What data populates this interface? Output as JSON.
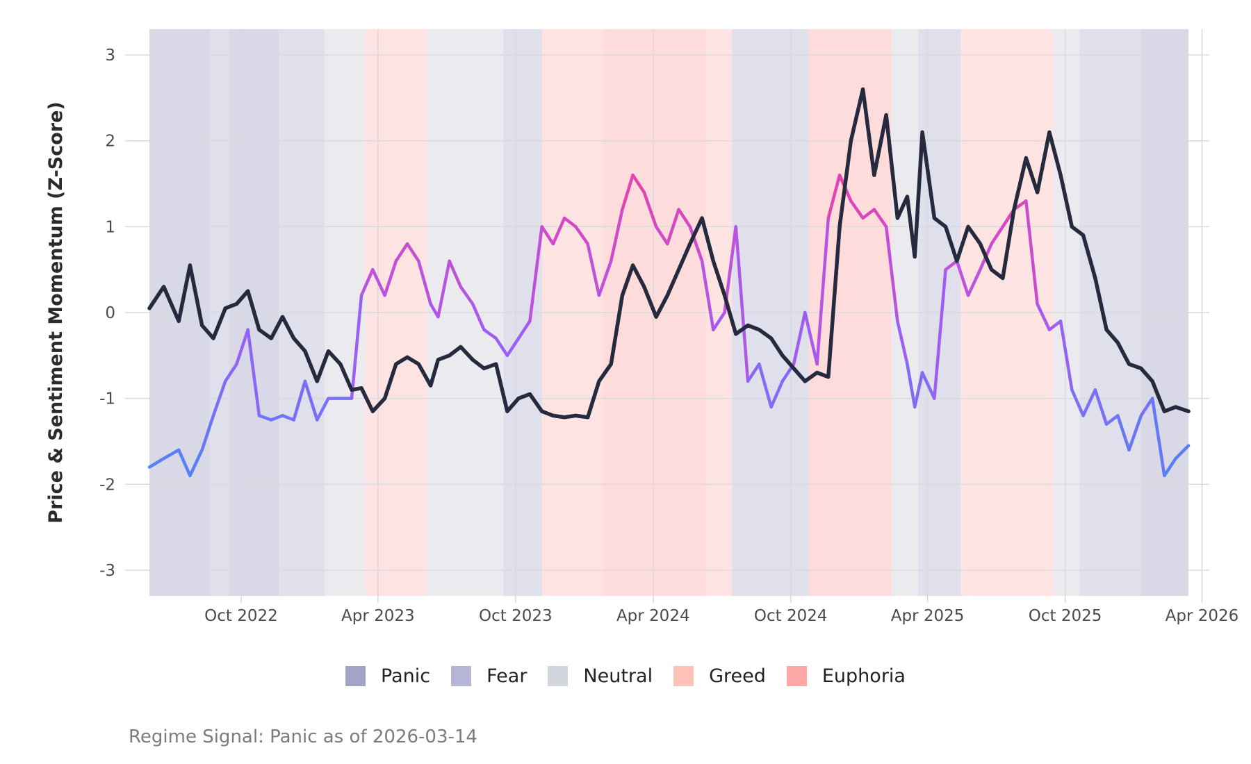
{
  "caption": "Regime Signal: Panic as of 2026-03-14",
  "colors": {
    "panel_bg": "#ebebef",
    "price_line": "#262a3e",
    "sentiment_low": "#4a86f7",
    "sentiment_mid": "#a35cf2",
    "sentiment_high": "#f23ea4",
    "grid": "#d9d9e0"
  },
  "chart_data": {
    "type": "line",
    "title": "",
    "xlabel": "",
    "ylabel": "Price & Sentiment Momentum (Z-Score)",
    "xlim": [
      "2022-06-01",
      "2026-03-14"
    ],
    "ylim": [
      -3.3,
      3.3
    ],
    "grid": true,
    "legend_position": "bottom",
    "x_ticks": [
      {
        "date": "2022-10-01",
        "label": "Oct 2022"
      },
      {
        "date": "2023-04-01",
        "label": "Apr 2023"
      },
      {
        "date": "2023-10-01",
        "label": "Oct 2023"
      },
      {
        "date": "2024-04-01",
        "label": "Apr 2024"
      },
      {
        "date": "2024-10-01",
        "label": "Oct 2024"
      },
      {
        "date": "2025-04-01",
        "label": "Apr 2025"
      },
      {
        "date": "2025-10-01",
        "label": "Oct 2025"
      },
      {
        "date": "2026-04-01",
        "label": "Apr 2026"
      }
    ],
    "y_ticks": [
      {
        "value": 3,
        "label": "3"
      },
      {
        "value": 2,
        "label": "2"
      },
      {
        "value": 1,
        "label": "1"
      },
      {
        "value": 0,
        "label": "0"
      },
      {
        "value": -1,
        "label": "-1"
      },
      {
        "value": -2,
        "label": "-2"
      },
      {
        "value": -3,
        "label": "-3"
      }
    ],
    "regime_legend": [
      {
        "name": "Panic",
        "color": "#a3a3c8"
      },
      {
        "name": "Fear",
        "color": "#b5b5d6"
      },
      {
        "name": "Neutral",
        "color": "#d3d6dc"
      },
      {
        "name": "Greed",
        "color": "#ffc2b8"
      },
      {
        "name": "Euphoria",
        "color": "#ffa8a8"
      }
    ],
    "regime_band_colors": {
      "Panic": "#d8d8e6",
      "Fear": "#e0e0ec",
      "Neutral": "#ebebef",
      "Greed": "#fde4e2",
      "Euphoria": "#ffdcdc"
    },
    "regimes": [
      {
        "start": "2022-06-01",
        "end": "2022-08-20",
        "regime": "Panic"
      },
      {
        "start": "2022-08-20",
        "end": "2022-09-15",
        "regime": "Fear"
      },
      {
        "start": "2022-09-15",
        "end": "2022-11-20",
        "regime": "Panic"
      },
      {
        "start": "2022-11-20",
        "end": "2023-01-20",
        "regime": "Fear"
      },
      {
        "start": "2023-01-20",
        "end": "2023-03-15",
        "regime": "Neutral"
      },
      {
        "start": "2023-03-15",
        "end": "2023-06-05",
        "regime": "Greed"
      },
      {
        "start": "2023-06-05",
        "end": "2023-09-15",
        "regime": "Neutral"
      },
      {
        "start": "2023-09-15",
        "end": "2023-11-05",
        "regime": "Fear"
      },
      {
        "start": "2023-11-05",
        "end": "2024-01-25",
        "regime": "Greed"
      },
      {
        "start": "2024-01-25",
        "end": "2024-06-10",
        "regime": "Euphoria"
      },
      {
        "start": "2024-06-10",
        "end": "2024-07-15",
        "regime": "Greed"
      },
      {
        "start": "2024-07-15",
        "end": "2024-10-25",
        "regime": "Fear"
      },
      {
        "start": "2024-10-25",
        "end": "2025-02-12",
        "regime": "Euphoria"
      },
      {
        "start": "2025-02-12",
        "end": "2025-03-20",
        "regime": "Neutral"
      },
      {
        "start": "2025-03-20",
        "end": "2025-05-15",
        "regime": "Fear"
      },
      {
        "start": "2025-05-15",
        "end": "2025-09-15",
        "regime": "Greed"
      },
      {
        "start": "2025-09-15",
        "end": "2025-10-20",
        "regime": "Neutral"
      },
      {
        "start": "2025-10-20",
        "end": "2026-01-10",
        "regime": "Fear"
      },
      {
        "start": "2026-01-10",
        "end": "2026-03-14",
        "regime": "Panic"
      }
    ],
    "series": [
      {
        "role": "price",
        "x": [
          "2022-06-01",
          "2022-06-20",
          "2022-07-10",
          "2022-07-25",
          "2022-08-10",
          "2022-08-25",
          "2022-09-10",
          "2022-09-25",
          "2022-10-10",
          "2022-10-25",
          "2022-11-10",
          "2022-11-25",
          "2022-12-10",
          "2022-12-25",
          "2023-01-10",
          "2023-01-25",
          "2023-02-10",
          "2023-02-25",
          "2023-03-10",
          "2023-03-25",
          "2023-04-10",
          "2023-04-25",
          "2023-05-10",
          "2023-05-25",
          "2023-06-10",
          "2023-06-20",
          "2023-07-05",
          "2023-07-20",
          "2023-08-05",
          "2023-08-20",
          "2023-09-05",
          "2023-09-20",
          "2023-10-05",
          "2023-10-20",
          "2023-11-05",
          "2023-11-20",
          "2023-12-05",
          "2023-12-20",
          "2024-01-05",
          "2024-01-20",
          "2024-02-05",
          "2024-02-20",
          "2024-03-05",
          "2024-03-20",
          "2024-04-05",
          "2024-04-20",
          "2024-05-05",
          "2024-05-20",
          "2024-06-05",
          "2024-06-20",
          "2024-07-05",
          "2024-07-20",
          "2024-08-05",
          "2024-08-20",
          "2024-09-05",
          "2024-09-20",
          "2024-10-05",
          "2024-10-20",
          "2024-11-05",
          "2024-11-20",
          "2024-12-05",
          "2024-12-20",
          "2025-01-05",
          "2025-01-20",
          "2025-02-05",
          "2025-02-20",
          "2025-03-05",
          "2025-03-15",
          "2025-03-25",
          "2025-04-10",
          "2025-04-25",
          "2025-05-10",
          "2025-05-25",
          "2025-06-10",
          "2025-06-25",
          "2025-07-10",
          "2025-07-25",
          "2025-08-10",
          "2025-08-25",
          "2025-09-10",
          "2025-09-25",
          "2025-10-10",
          "2025-10-25",
          "2025-11-10",
          "2025-11-25",
          "2025-12-10",
          "2025-12-25",
          "2026-01-10",
          "2026-01-25",
          "2026-02-10",
          "2026-02-25",
          "2026-03-14"
        ],
        "y": [
          0.05,
          0.3,
          -0.1,
          0.55,
          -0.15,
          -0.3,
          0.05,
          0.1,
          0.25,
          -0.2,
          -0.3,
          -0.05,
          -0.3,
          -0.45,
          -0.8,
          -0.45,
          -0.6,
          -0.9,
          -0.88,
          -1.15,
          -1.0,
          -0.6,
          -0.52,
          -0.6,
          -0.85,
          -0.55,
          -0.5,
          -0.4,
          -0.55,
          -0.65,
          -0.6,
          -1.15,
          -1.0,
          -0.95,
          -1.15,
          -1.2,
          -1.22,
          -1.2,
          -1.22,
          -0.8,
          -0.6,
          0.2,
          0.55,
          0.3,
          -0.05,
          0.2,
          0.5,
          0.8,
          1.1,
          0.6,
          0.2,
          -0.25,
          -0.15,
          -0.2,
          -0.3,
          -0.5,
          -0.65,
          -0.8,
          -0.7,
          -0.75,
          1.0,
          2.0,
          2.6,
          1.6,
          2.3,
          1.1,
          1.35,
          0.65,
          2.1,
          1.1,
          1.0,
          0.6,
          1.0,
          0.8,
          0.5,
          0.4,
          1.2,
          1.8,
          1.4,
          2.1,
          1.6,
          1.0,
          0.9,
          0.4,
          -0.2,
          -0.35,
          -0.6,
          -0.65,
          -0.8,
          -1.15,
          -1.1,
          -1.15
        ]
      },
      {
        "role": "sentiment",
        "x": [
          "2022-06-01",
          "2022-06-20",
          "2022-07-10",
          "2022-07-25",
          "2022-08-10",
          "2022-08-25",
          "2022-09-10",
          "2022-09-25",
          "2022-10-10",
          "2022-10-25",
          "2022-11-10",
          "2022-11-25",
          "2022-12-10",
          "2022-12-25",
          "2023-01-10",
          "2023-01-25",
          "2023-02-10",
          "2023-02-25",
          "2023-03-10",
          "2023-03-25",
          "2023-04-10",
          "2023-04-25",
          "2023-05-10",
          "2023-05-25",
          "2023-06-10",
          "2023-06-20",
          "2023-07-05",
          "2023-07-20",
          "2023-08-05",
          "2023-08-20",
          "2023-09-05",
          "2023-09-20",
          "2023-10-05",
          "2023-10-20",
          "2023-11-05",
          "2023-11-20",
          "2023-12-05",
          "2023-12-20",
          "2024-01-05",
          "2024-01-20",
          "2024-02-05",
          "2024-02-20",
          "2024-03-05",
          "2024-03-20",
          "2024-04-05",
          "2024-04-20",
          "2024-05-05",
          "2024-05-20",
          "2024-06-05",
          "2024-06-20",
          "2024-07-05",
          "2024-07-20",
          "2024-08-05",
          "2024-08-20",
          "2024-09-05",
          "2024-09-20",
          "2024-10-05",
          "2024-10-20",
          "2024-11-05",
          "2024-11-20",
          "2024-12-05",
          "2024-12-20",
          "2025-01-05",
          "2025-01-20",
          "2025-02-05",
          "2025-02-20",
          "2025-03-05",
          "2025-03-15",
          "2025-03-25",
          "2025-04-10",
          "2025-04-25",
          "2025-05-10",
          "2025-05-25",
          "2025-06-10",
          "2025-06-25",
          "2025-07-10",
          "2025-07-25",
          "2025-08-10",
          "2025-08-25",
          "2025-09-10",
          "2025-09-25",
          "2025-10-10",
          "2025-10-25",
          "2025-11-10",
          "2025-11-25",
          "2025-12-10",
          "2025-12-25",
          "2026-01-10",
          "2026-01-25",
          "2026-02-10",
          "2026-02-25",
          "2026-03-14"
        ],
        "y": [
          -1.8,
          -1.7,
          -1.6,
          -1.9,
          -1.6,
          -1.2,
          -0.8,
          -0.6,
          -0.2,
          -1.2,
          -1.25,
          -1.2,
          -1.25,
          -0.8,
          -1.25,
          -1.0,
          -1.0,
          -1.0,
          0.2,
          0.5,
          0.2,
          0.6,
          0.8,
          0.6,
          0.1,
          -0.05,
          0.6,
          0.3,
          0.1,
          -0.2,
          -0.3,
          -0.5,
          -0.3,
          -0.1,
          1.0,
          0.8,
          1.1,
          1.0,
          0.8,
          0.2,
          0.6,
          1.2,
          1.6,
          1.4,
          1.0,
          0.8,
          1.2,
          1.0,
          0.6,
          -0.2,
          0.0,
          1.0,
          -0.8,
          -0.6,
          -1.1,
          -0.8,
          -0.6,
          0.0,
          -0.6,
          1.1,
          1.6,
          1.3,
          1.1,
          1.2,
          1.0,
          -0.1,
          -0.6,
          -1.1,
          -0.7,
          -1.0,
          0.5,
          0.6,
          0.2,
          0.5,
          0.8,
          1.0,
          1.2,
          1.3,
          0.1,
          -0.2,
          -0.1,
          -0.9,
          -1.2,
          -0.9,
          -1.3,
          -1.2,
          -1.6,
          -1.2,
          -1.0,
          -1.9,
          -1.7,
          -1.55
        ]
      }
    ]
  }
}
